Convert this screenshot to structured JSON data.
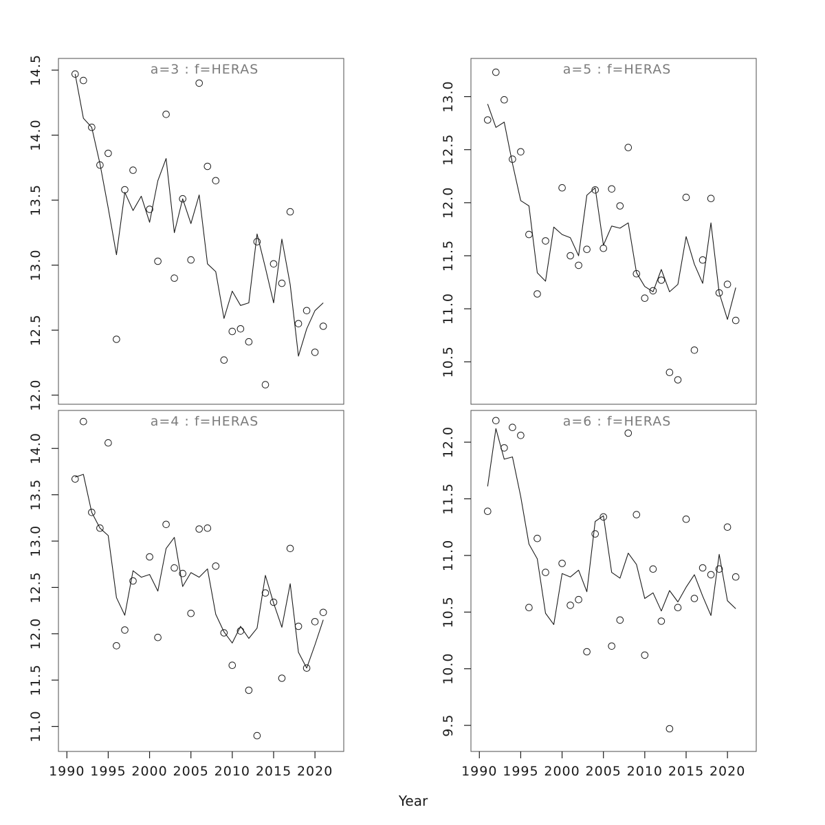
{
  "figure": {
    "xlabel": "Year",
    "xticklabels": [
      "1990",
      "1995",
      "2000",
      "2005",
      "2010",
      "2015",
      "2020"
    ],
    "colors": {
      "background": "#ffffff",
      "fit_line": "#1a1a1a",
      "point_stroke": "#1a1a1a",
      "panel_border": "#4d4d4d",
      "tick": "#1a1a1a",
      "tick_text": "#1a1a1a",
      "title_text": "#7b7b7b"
    }
  },
  "chart_data": [
    {
      "type": "scatter",
      "title": "a=3 : f=HERAS",
      "position": "top-left",
      "legend": "none",
      "grid": false,
      "xlim": [
        1988.98,
        2023.48
      ],
      "ylim": [
        11.93,
        14.59
      ],
      "yticks": [
        "12.0",
        "12.5",
        "13.0",
        "13.5",
        "14.0",
        "14.5"
      ],
      "points": {
        "years": [
          1991,
          1992,
          1993,
          1994,
          1995,
          1996,
          1997,
          1998,
          2000,
          2001,
          2002,
          2003,
          2004,
          2005,
          2006,
          2007,
          2008,
          2009,
          2010,
          2011,
          2012,
          2013,
          2014,
          2015,
          2016,
          2017,
          2018,
          2019,
          2020,
          2021
        ],
        "values": [
          14.47,
          14.42,
          14.06,
          13.77,
          13.86,
          12.43,
          13.58,
          13.73,
          13.43,
          13.03,
          14.16,
          12.9,
          13.51,
          13.04,
          14.4,
          13.76,
          13.65,
          12.27,
          12.49,
          12.51,
          12.41,
          13.18,
          12.08,
          13.01,
          12.86,
          13.41,
          12.55,
          12.65,
          12.33,
          12.53
        ]
      },
      "fit_line": {
        "years": [
          1991,
          1992,
          1993,
          1994,
          1995,
          1996,
          1997,
          1998,
          1999,
          2000,
          2001,
          2002,
          2003,
          2004,
          2005,
          2006,
          2007,
          2008,
          2009,
          2010,
          2011,
          2012,
          2013,
          2014,
          2015,
          2016,
          2017,
          2018,
          2019,
          2020,
          2021
        ],
        "values": [
          14.47,
          14.13,
          14.06,
          13.78,
          13.44,
          13.08,
          13.56,
          13.42,
          13.53,
          13.33,
          13.65,
          13.82,
          13.25,
          13.51,
          13.32,
          13.54,
          13.01,
          12.95,
          12.59,
          12.8,
          12.69,
          12.71,
          13.24,
          12.98,
          12.71,
          13.2,
          12.85,
          12.3,
          12.51,
          12.65,
          12.71
        ]
      }
    },
    {
      "type": "scatter",
      "title": "a=5 : f=HERAS",
      "position": "top-right",
      "legend": "none",
      "grid": false,
      "xlim": [
        1988.98,
        2023.48
      ],
      "ylim": [
        10.1,
        13.36
      ],
      "yticks": [
        "10.5",
        "11.0",
        "11.5",
        "12.0",
        "12.5",
        "13.0"
      ],
      "points": {
        "years": [
          1991,
          1992,
          1993,
          1994,
          1995,
          1996,
          1997,
          1998,
          2000,
          2001,
          2002,
          2003,
          2004,
          2005,
          2006,
          2007,
          2008,
          2009,
          2010,
          2011,
          2012,
          2013,
          2014,
          2015,
          2016,
          2017,
          2018,
          2019,
          2020,
          2021
        ],
        "values": [
          12.78,
          13.23,
          12.97,
          12.41,
          12.48,
          11.7,
          11.14,
          11.64,
          12.14,
          11.5,
          11.41,
          11.56,
          12.12,
          11.57,
          12.13,
          11.97,
          12.52,
          11.33,
          11.1,
          11.17,
          11.27,
          10.4,
          10.33,
          12.05,
          10.61,
          11.46,
          12.04,
          11.15,
          11.23,
          10.89
        ]
      },
      "fit_line": {
        "years": [
          1991,
          1992,
          1993,
          1994,
          1995,
          1996,
          1997,
          1998,
          1999,
          2000,
          2001,
          2002,
          2003,
          2004,
          2005,
          2006,
          2007,
          2008,
          2009,
          2010,
          2011,
          2012,
          2013,
          2014,
          2015,
          2016,
          2017,
          2018,
          2019,
          2020,
          2021
        ],
        "values": [
          12.93,
          12.71,
          12.76,
          12.37,
          12.02,
          11.97,
          11.34,
          11.26,
          11.77,
          11.7,
          11.67,
          11.5,
          12.07,
          12.14,
          11.6,
          11.78,
          11.76,
          11.81,
          11.34,
          11.21,
          11.16,
          11.37,
          11.16,
          11.23,
          11.68,
          11.42,
          11.24,
          11.81,
          11.15,
          10.9,
          11.2
        ]
      }
    },
    {
      "type": "scatter",
      "title": "a=4 : f=HERAS",
      "position": "bottom-left",
      "legend": "none",
      "grid": false,
      "xlim": [
        1988.98,
        2023.48
      ],
      "ylim": [
        10.73,
        14.41
      ],
      "yticks": [
        "11.0",
        "11.5",
        "12.0",
        "12.5",
        "13.0",
        "13.5",
        "14.0"
      ],
      "points": {
        "years": [
          1991,
          1992,
          1993,
          1994,
          1995,
          1996,
          1997,
          1998,
          2000,
          2001,
          2002,
          2003,
          2004,
          2005,
          2006,
          2007,
          2008,
          2009,
          2010,
          2011,
          2012,
          2013,
          2014,
          2015,
          2016,
          2017,
          2018,
          2019,
          2020,
          2021
        ],
        "values": [
          13.67,
          14.29,
          13.31,
          13.14,
          14.06,
          11.87,
          12.04,
          12.57,
          12.83,
          11.96,
          13.18,
          12.71,
          12.65,
          12.22,
          13.13,
          13.14,
          12.73,
          12.01,
          11.66,
          12.03,
          11.39,
          10.9,
          12.44,
          12.34,
          11.52,
          12.92,
          12.08,
          11.63,
          12.13,
          12.23
        ]
      },
      "fit_line": {
        "years": [
          1991,
          1992,
          1993,
          1994,
          1995,
          1996,
          1997,
          1998,
          1999,
          2000,
          2001,
          2002,
          2003,
          2004,
          2005,
          2006,
          2007,
          2008,
          2009,
          2010,
          2011,
          2012,
          2013,
          2014,
          2015,
          2016,
          2017,
          2018,
          2019,
          2020,
          2021
        ],
        "values": [
          13.69,
          13.72,
          13.31,
          13.14,
          13.06,
          12.39,
          12.2,
          12.68,
          12.61,
          12.64,
          12.46,
          12.92,
          13.04,
          12.51,
          12.66,
          12.61,
          12.7,
          12.21,
          12.02,
          11.9,
          12.08,
          11.95,
          12.06,
          12.63,
          12.33,
          12.07,
          12.54,
          11.8,
          11.63,
          11.88,
          12.15
        ]
      }
    },
    {
      "type": "scatter",
      "title": "a=6 : f=HERAS",
      "position": "bottom-right",
      "legend": "none",
      "grid": false,
      "xlim": [
        1988.98,
        2023.48
      ],
      "ylim": [
        9.27,
        12.28
      ],
      "yticks": [
        "9.5",
        "10.0",
        "10.5",
        "11.0",
        "11.5",
        "12.0"
      ],
      "points": {
        "years": [
          1991,
          1992,
          1993,
          1994,
          1995,
          1996,
          1997,
          1998,
          2000,
          2001,
          2002,
          2003,
          2004,
          2005,
          2006,
          2007,
          2008,
          2009,
          2010,
          2011,
          2012,
          2013,
          2014,
          2015,
          2016,
          2017,
          2018,
          2019,
          2020,
          2021
        ],
        "values": [
          11.39,
          12.19,
          11.95,
          12.13,
          12.06,
          10.54,
          11.15,
          10.85,
          10.93,
          10.56,
          10.61,
          10.15,
          11.19,
          11.34,
          10.2,
          10.43,
          12.08,
          11.36,
          10.12,
          10.88,
          10.42,
          9.47,
          10.54,
          11.32,
          10.62,
          10.89,
          10.83,
          10.88,
          11.25,
          10.81
        ]
      },
      "fit_line": {
        "years": [
          1991,
          1992,
          1993,
          1994,
          1995,
          1996,
          1997,
          1998,
          1999,
          2000,
          2001,
          2002,
          2003,
          2004,
          2005,
          2006,
          2007,
          2008,
          2009,
          2010,
          2011,
          2012,
          2013,
          2014,
          2015,
          2016,
          2017,
          2018,
          2019,
          2020,
          2021
        ],
        "values": [
          11.61,
          12.12,
          11.85,
          11.87,
          11.52,
          11.1,
          10.97,
          10.49,
          10.39,
          10.84,
          10.81,
          10.87,
          10.68,
          11.3,
          11.35,
          10.85,
          10.8,
          11.02,
          10.92,
          10.62,
          10.67,
          10.51,
          10.69,
          10.59,
          10.72,
          10.83,
          10.64,
          10.47,
          11.01,
          10.6,
          10.53
        ]
      }
    }
  ]
}
